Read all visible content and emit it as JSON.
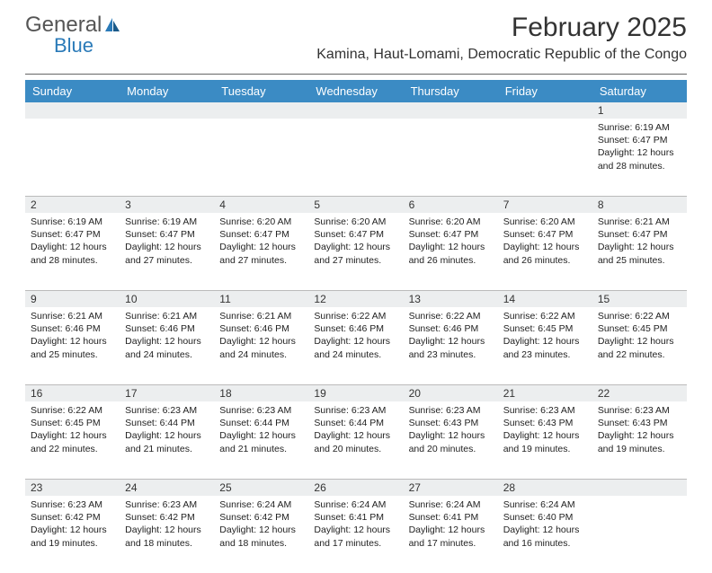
{
  "logo": {
    "part1": "General",
    "part2": "Blue"
  },
  "title": "February 2025",
  "location": "Kamina, Haut-Lomami, Democratic Republic of the Congo",
  "colors": {
    "header_bg": "#3b8bc4",
    "header_fg": "#ffffff",
    "daynum_bg": "#eceeef",
    "logo_gray": "#555555",
    "logo_blue": "#2a7ab8"
  },
  "day_names": [
    "Sunday",
    "Monday",
    "Tuesday",
    "Wednesday",
    "Thursday",
    "Friday",
    "Saturday"
  ],
  "weeks": [
    [
      {
        "n": "",
        "sr": "",
        "ss": "",
        "dl": ""
      },
      {
        "n": "",
        "sr": "",
        "ss": "",
        "dl": ""
      },
      {
        "n": "",
        "sr": "",
        "ss": "",
        "dl": ""
      },
      {
        "n": "",
        "sr": "",
        "ss": "",
        "dl": ""
      },
      {
        "n": "",
        "sr": "",
        "ss": "",
        "dl": ""
      },
      {
        "n": "",
        "sr": "",
        "ss": "",
        "dl": ""
      },
      {
        "n": "1",
        "sr": "Sunrise: 6:19 AM",
        "ss": "Sunset: 6:47 PM",
        "dl": "Daylight: 12 hours and 28 minutes."
      }
    ],
    [
      {
        "n": "2",
        "sr": "Sunrise: 6:19 AM",
        "ss": "Sunset: 6:47 PM",
        "dl": "Daylight: 12 hours and 28 minutes."
      },
      {
        "n": "3",
        "sr": "Sunrise: 6:19 AM",
        "ss": "Sunset: 6:47 PM",
        "dl": "Daylight: 12 hours and 27 minutes."
      },
      {
        "n": "4",
        "sr": "Sunrise: 6:20 AM",
        "ss": "Sunset: 6:47 PM",
        "dl": "Daylight: 12 hours and 27 minutes."
      },
      {
        "n": "5",
        "sr": "Sunrise: 6:20 AM",
        "ss": "Sunset: 6:47 PM",
        "dl": "Daylight: 12 hours and 27 minutes."
      },
      {
        "n": "6",
        "sr": "Sunrise: 6:20 AM",
        "ss": "Sunset: 6:47 PM",
        "dl": "Daylight: 12 hours and 26 minutes."
      },
      {
        "n": "7",
        "sr": "Sunrise: 6:20 AM",
        "ss": "Sunset: 6:47 PM",
        "dl": "Daylight: 12 hours and 26 minutes."
      },
      {
        "n": "8",
        "sr": "Sunrise: 6:21 AM",
        "ss": "Sunset: 6:47 PM",
        "dl": "Daylight: 12 hours and 25 minutes."
      }
    ],
    [
      {
        "n": "9",
        "sr": "Sunrise: 6:21 AM",
        "ss": "Sunset: 6:46 PM",
        "dl": "Daylight: 12 hours and 25 minutes."
      },
      {
        "n": "10",
        "sr": "Sunrise: 6:21 AM",
        "ss": "Sunset: 6:46 PM",
        "dl": "Daylight: 12 hours and 24 minutes."
      },
      {
        "n": "11",
        "sr": "Sunrise: 6:21 AM",
        "ss": "Sunset: 6:46 PM",
        "dl": "Daylight: 12 hours and 24 minutes."
      },
      {
        "n": "12",
        "sr": "Sunrise: 6:22 AM",
        "ss": "Sunset: 6:46 PM",
        "dl": "Daylight: 12 hours and 24 minutes."
      },
      {
        "n": "13",
        "sr": "Sunrise: 6:22 AM",
        "ss": "Sunset: 6:46 PM",
        "dl": "Daylight: 12 hours and 23 minutes."
      },
      {
        "n": "14",
        "sr": "Sunrise: 6:22 AM",
        "ss": "Sunset: 6:45 PM",
        "dl": "Daylight: 12 hours and 23 minutes."
      },
      {
        "n": "15",
        "sr": "Sunrise: 6:22 AM",
        "ss": "Sunset: 6:45 PM",
        "dl": "Daylight: 12 hours and 22 minutes."
      }
    ],
    [
      {
        "n": "16",
        "sr": "Sunrise: 6:22 AM",
        "ss": "Sunset: 6:45 PM",
        "dl": "Daylight: 12 hours and 22 minutes."
      },
      {
        "n": "17",
        "sr": "Sunrise: 6:23 AM",
        "ss": "Sunset: 6:44 PM",
        "dl": "Daylight: 12 hours and 21 minutes."
      },
      {
        "n": "18",
        "sr": "Sunrise: 6:23 AM",
        "ss": "Sunset: 6:44 PM",
        "dl": "Daylight: 12 hours and 21 minutes."
      },
      {
        "n": "19",
        "sr": "Sunrise: 6:23 AM",
        "ss": "Sunset: 6:44 PM",
        "dl": "Daylight: 12 hours and 20 minutes."
      },
      {
        "n": "20",
        "sr": "Sunrise: 6:23 AM",
        "ss": "Sunset: 6:43 PM",
        "dl": "Daylight: 12 hours and 20 minutes."
      },
      {
        "n": "21",
        "sr": "Sunrise: 6:23 AM",
        "ss": "Sunset: 6:43 PM",
        "dl": "Daylight: 12 hours and 19 minutes."
      },
      {
        "n": "22",
        "sr": "Sunrise: 6:23 AM",
        "ss": "Sunset: 6:43 PM",
        "dl": "Daylight: 12 hours and 19 minutes."
      }
    ],
    [
      {
        "n": "23",
        "sr": "Sunrise: 6:23 AM",
        "ss": "Sunset: 6:42 PM",
        "dl": "Daylight: 12 hours and 19 minutes."
      },
      {
        "n": "24",
        "sr": "Sunrise: 6:23 AM",
        "ss": "Sunset: 6:42 PM",
        "dl": "Daylight: 12 hours and 18 minutes."
      },
      {
        "n": "25",
        "sr": "Sunrise: 6:24 AM",
        "ss": "Sunset: 6:42 PM",
        "dl": "Daylight: 12 hours and 18 minutes."
      },
      {
        "n": "26",
        "sr": "Sunrise: 6:24 AM",
        "ss": "Sunset: 6:41 PM",
        "dl": "Daylight: 12 hours and 17 minutes."
      },
      {
        "n": "27",
        "sr": "Sunrise: 6:24 AM",
        "ss": "Sunset: 6:41 PM",
        "dl": "Daylight: 12 hours and 17 minutes."
      },
      {
        "n": "28",
        "sr": "Sunrise: 6:24 AM",
        "ss": "Sunset: 6:40 PM",
        "dl": "Daylight: 12 hours and 16 minutes."
      },
      {
        "n": "",
        "sr": "",
        "ss": "",
        "dl": ""
      }
    ]
  ]
}
